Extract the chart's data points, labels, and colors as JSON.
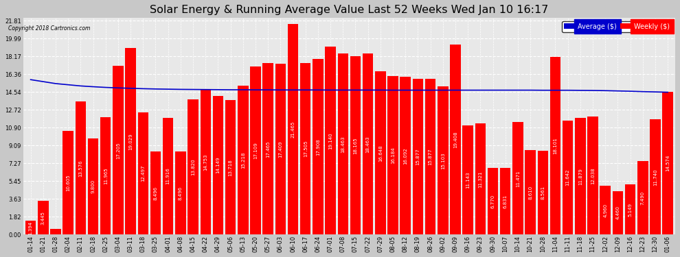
{
  "title": "Solar Energy & Running Average Value Last 52 Weeks Wed Jan 10 16:17",
  "copyright": "Copyright 2018 Cartronics.com",
  "bar_color": "#ff0000",
  "avg_line_color": "#0000cc",
  "background_color": "#c8c8c8",
  "plot_bg_color": "#e8e8e8",
  "grid_color": "#ffffff",
  "text_color": "#000000",
  "ytick_values": [
    0.0,
    1.82,
    3.63,
    5.45,
    7.27,
    9.09,
    10.9,
    12.72,
    14.54,
    16.36,
    18.17,
    19.99,
    21.81
  ],
  "ytick_labels": [
    "0.00",
    "1.82",
    "3.63",
    "5.45",
    "7.27",
    "9.09",
    "10.90",
    "12.72",
    "14.54",
    "16.36",
    "18.17",
    "19.99",
    "21.81"
  ],
  "categories": [
    "01-14",
    "01-21",
    "01-28",
    "02-04",
    "02-11",
    "02-18",
    "02-25",
    "03-04",
    "03-11",
    "03-18",
    "03-25",
    "04-01",
    "04-08",
    "04-15",
    "04-22",
    "04-29",
    "05-06",
    "05-13",
    "05-20",
    "05-27",
    "06-03",
    "06-10",
    "06-17",
    "06-24",
    "07-01",
    "07-08",
    "07-15",
    "07-22",
    "07-29",
    "08-05",
    "08-12",
    "08-19",
    "08-26",
    "09-02",
    "09-09",
    "09-16",
    "09-23",
    "09-30",
    "10-07",
    "10-14",
    "10-21",
    "10-28",
    "11-04",
    "11-11",
    "11-18",
    "11-25",
    "12-02",
    "12-09",
    "12-16",
    "12-23",
    "12-30",
    "01-06"
  ],
  "values": [
    1.394,
    3.445,
    0.554,
    10.605,
    13.576,
    9.8,
    11.965,
    17.205,
    19.029,
    12.497,
    8.496,
    11.916,
    8.496,
    13.82,
    14.753,
    14.149,
    13.718,
    15.218,
    17.109,
    17.465,
    17.409,
    21.465,
    17.505,
    17.908,
    19.14,
    18.463,
    18.165,
    18.463,
    16.648,
    16.184,
    16.092,
    15.877,
    15.877,
    15.103,
    19.408,
    11.143,
    11.321,
    6.77,
    6.831,
    11.471,
    8.61,
    8.561,
    18.101,
    11.642,
    11.879,
    12.038,
    4.96,
    4.46,
    5.149,
    7.49,
    11.74,
    14.574
  ],
  "avg_values": [
    15.8,
    15.6,
    15.4,
    15.28,
    15.16,
    15.08,
    15.01,
    14.96,
    14.92,
    14.88,
    14.85,
    14.83,
    14.81,
    14.8,
    14.79,
    14.78,
    14.77,
    14.77,
    14.76,
    14.76,
    14.75,
    14.75,
    14.75,
    14.75,
    14.74,
    14.74,
    14.74,
    14.74,
    14.74,
    14.73,
    14.73,
    14.73,
    14.73,
    14.73,
    14.73,
    14.73,
    14.73,
    14.73,
    14.73,
    14.73,
    14.73,
    14.72,
    14.72,
    14.72,
    14.71,
    14.7,
    14.68,
    14.65,
    14.62,
    14.58,
    14.55,
    14.52
  ],
  "legend_avg_bg": "#0000cc",
  "legend_weekly_bg": "#ff0000",
  "title_fontsize": 11.5,
  "tick_fontsize": 6,
  "value_fontsize": 5,
  "ymax": 21.81,
  "ymin": 0.0
}
